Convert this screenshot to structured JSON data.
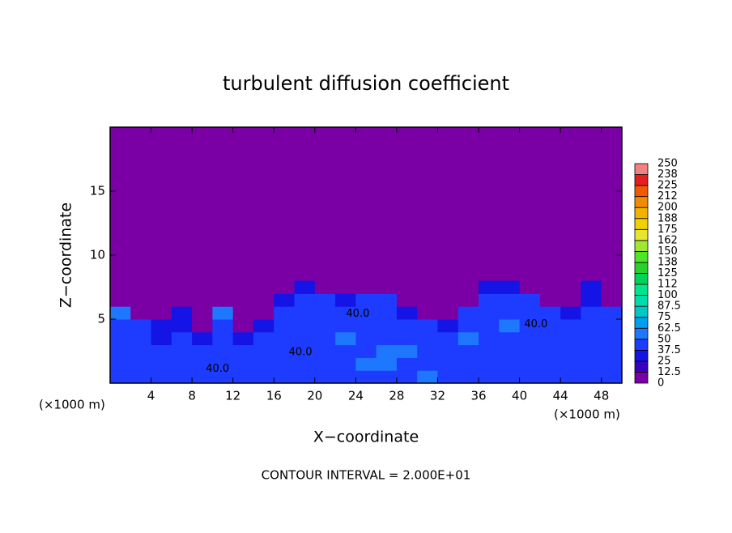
{
  "chart_data": {
    "type": "heatmap",
    "title": "turbulent diffusion coefficient",
    "x_label": "X−coordinate",
    "y_label": "Z−coordinate",
    "x_units_left": "(×1000 m)",
    "x_units_right": "(×1000 m)",
    "footnote": "CONTOUR INTERVAL = 2.000E+01",
    "xlim": [
      0,
      50
    ],
    "ylim": [
      0,
      20
    ],
    "xticks": [
      4,
      8,
      12,
      16,
      20,
      24,
      28,
      32,
      36,
      40,
      44,
      48
    ],
    "yticks": [
      5,
      10,
      15
    ],
    "x": [
      1,
      3,
      5,
      7,
      9,
      11,
      13,
      15,
      17,
      19,
      21,
      23,
      25,
      27,
      29,
      31,
      33,
      35,
      37,
      39,
      41,
      43,
      45,
      47,
      49
    ],
    "z": [
      0.5,
      1.5,
      2.5,
      3.5,
      4.5,
      5.5,
      6.5,
      7.5
    ],
    "values": [
      [
        40,
        42,
        38,
        45,
        40,
        38,
        42,
        45,
        40,
        38,
        42,
        48,
        45,
        40,
        42,
        50,
        45,
        40,
        38,
        42,
        45,
        40,
        38,
        42,
        40
      ],
      [
        38,
        40,
        42,
        40,
        45,
        42,
        40,
        38,
        45,
        42,
        40,
        45,
        50,
        55,
        48,
        42,
        40,
        45,
        42,
        40,
        38,
        42,
        45,
        40,
        42
      ],
      [
        40,
        38,
        40,
        42,
        38,
        45,
        40,
        42,
        40,
        45,
        48,
        42,
        45,
        60,
        50,
        45,
        42,
        40,
        45,
        42,
        40,
        45,
        40,
        42,
        38
      ],
      [
        42,
        40,
        35,
        38,
        30,
        40,
        35,
        38,
        45,
        42,
        40,
        50,
        45,
        40,
        45,
        42,
        40,
        55,
        45,
        42,
        45,
        40,
        42,
        38,
        40
      ],
      [
        45,
        38,
        25,
        30,
        0,
        42,
        0,
        25,
        45,
        48,
        42,
        40,
        45,
        42,
        40,
        38,
        35,
        45,
        48,
        50,
        45,
        42,
        40,
        45,
        42
      ],
      [
        55,
        0,
        0,
        25,
        0,
        50,
        0,
        0,
        40,
        45,
        40,
        42,
        45,
        40,
        30,
        0,
        0,
        40,
        45,
        42,
        40,
        38,
        30,
        42,
        40
      ],
      [
        0,
        0,
        0,
        0,
        0,
        0,
        0,
        0,
        30,
        40,
        38,
        35,
        40,
        38,
        0,
        0,
        0,
        0,
        40,
        42,
        38,
        0,
        0,
        35,
        0
      ],
      [
        0,
        0,
        0,
        0,
        0,
        0,
        0,
        0,
        0,
        30,
        0,
        0,
        0,
        0,
        0,
        0,
        0,
        0,
        25,
        35,
        0,
        0,
        0,
        30,
        0
      ]
    ],
    "contour_labels": [
      {
        "text": "40.0",
        "x": 10.5,
        "z": 1.1
      },
      {
        "text": "40.0",
        "x": 18.6,
        "z": 2.4
      },
      {
        "text": "40.0",
        "x": 24.2,
        "z": 5.4
      },
      {
        "text": "40.0",
        "x": 41.6,
        "z": 4.6
      }
    ],
    "colorbar_ticks": [
      0,
      12.5,
      25,
      37.5,
      50,
      62.5,
      75,
      87.5,
      100,
      {
        "value": 112.5,
        "label": "112"
      },
      125,
      {
        "value": 137.5,
        "label": "138"
      },
      150,
      {
        "value": 162.5,
        "label": "162"
      },
      175,
      {
        "value": 187.5,
        "label": "188"
      },
      200,
      {
        "value": 212.5,
        "label": "212"
      },
      225,
      {
        "value": 237.5,
        "label": "238"
      },
      250
    ],
    "colors": [
      "#7a00a6",
      "#3a00c0",
      "#1414e6",
      "#1e3cff",
      "#1e78ff",
      "#00a0f0",
      "#00c8c8",
      "#00dcaa",
      "#00e68c",
      "#00d25a",
      "#28d228",
      "#50e628",
      "#a0e632",
      "#e6e632",
      "#f0d200",
      "#f0b400",
      "#f08c00",
      "#f05a00",
      "#e61e1e",
      "#f08282"
    ]
  }
}
